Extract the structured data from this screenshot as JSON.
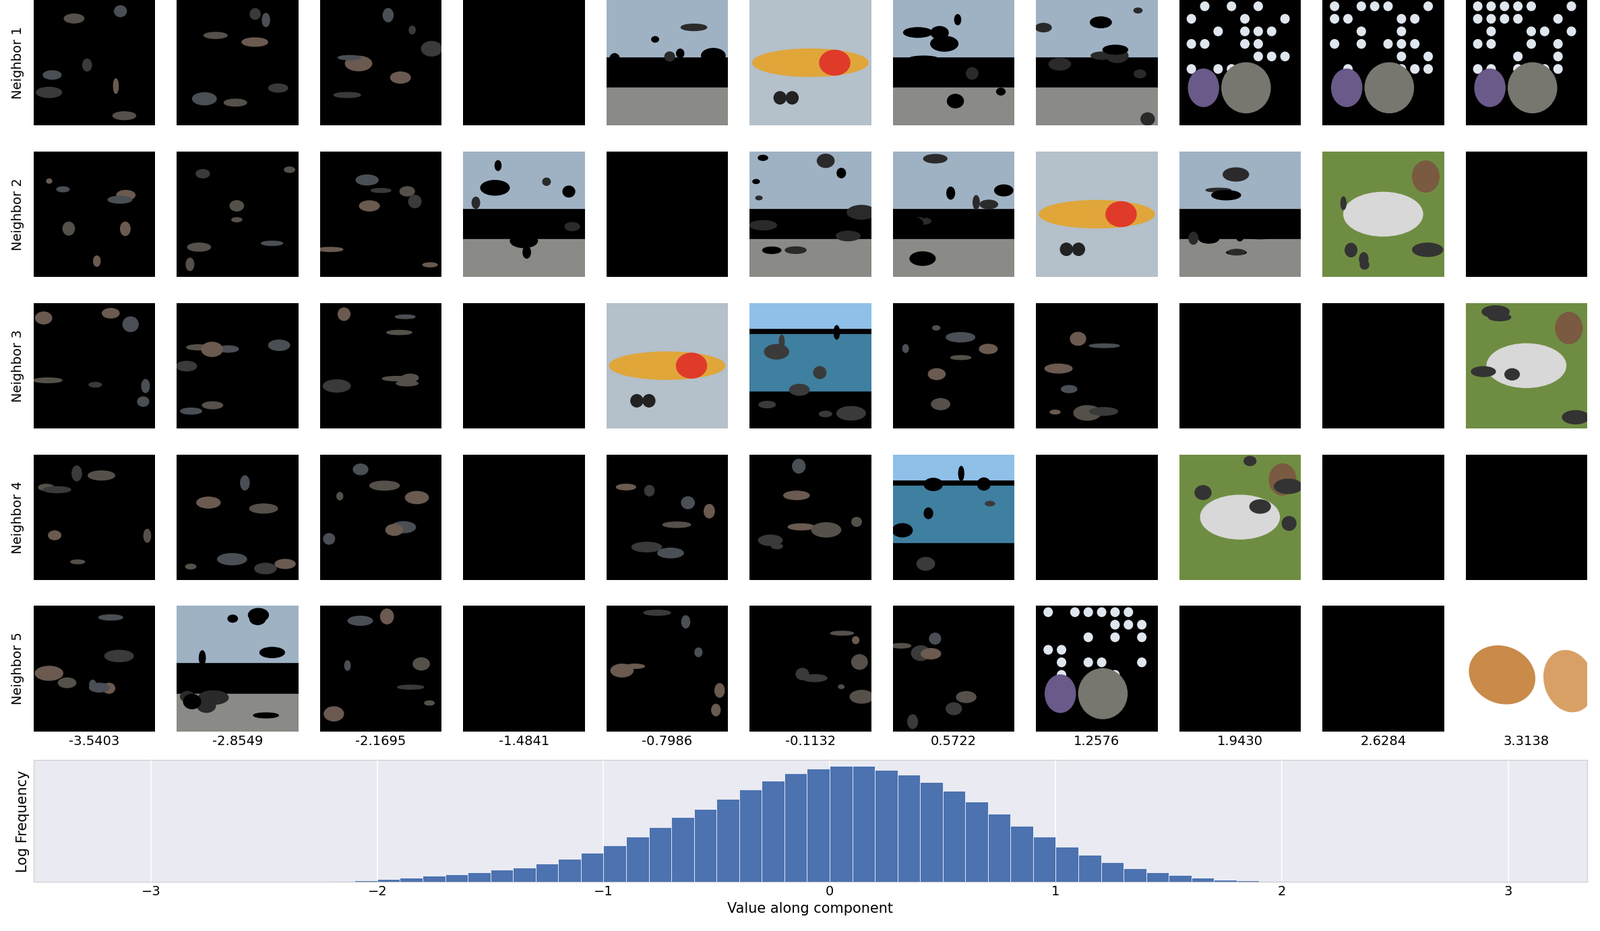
{
  "row_labels": [
    "Neighbor 1",
    "Neighbor 2",
    "Neighbor 3",
    "Neighbor 4",
    "Neighbor 5"
  ],
  "column_labels": [
    "-3.5403",
    "-2.8549",
    "-2.1695",
    "-1.4841",
    "-0.7986",
    "-0.1132",
    "0.5722",
    "1.2576",
    "1.9430",
    "2.6284",
    "3.3138"
  ],
  "chart_data": {
    "type": "histogram",
    "xlabel": "Value along component",
    "ylabel": "Log Frequency",
    "bins": [
      -2.2,
      -2.1,
      -2.0,
      -1.9,
      -1.8,
      -1.7,
      -1.6,
      -1.5,
      -1.4,
      -1.3,
      -1.2,
      -1.1,
      -1.0,
      -0.9,
      -0.8,
      -0.7,
      -0.6,
      -0.5,
      -0.4,
      -0.3,
      -0.2,
      -0.1,
      0.0,
      0.1,
      0.2,
      0.3,
      0.4,
      0.5,
      0.6,
      0.7,
      0.8,
      0.9,
      1.0,
      1.1,
      1.2,
      1.3,
      1.4,
      1.5,
      1.6,
      1.7,
      1.8,
      1.9,
      2.0
    ],
    "values": [
      0.06,
      0.18,
      0.3,
      0.42,
      0.6,
      0.78,
      0.96,
      1.2,
      1.44,
      1.8,
      2.28,
      2.88,
      3.6,
      4.44,
      5.4,
      6.36,
      7.2,
      8.16,
      9.12,
      9.96,
      10.68,
      11.16,
      11.4,
      11.4,
      11.04,
      10.56,
      9.84,
      9.0,
      7.92,
      6.72,
      5.52,
      4.44,
      3.48,
      2.64,
      1.92,
      1.32,
      0.96,
      0.66,
      0.42,
      0.24,
      0.12,
      0.06
    ],
    "color": "#4c72b0",
    "xlim": [
      -3.52,
      3.35
    ],
    "xticks": [
      {
        "value": -3,
        "label": "−3"
      },
      {
        "value": -2,
        "label": "−2"
      },
      {
        "value": -1,
        "label": "−1"
      },
      0,
      1,
      2,
      3
    ],
    "ylim": [
      0,
      12
    ],
    "grid": true,
    "tick_labels": "x"
  }
}
